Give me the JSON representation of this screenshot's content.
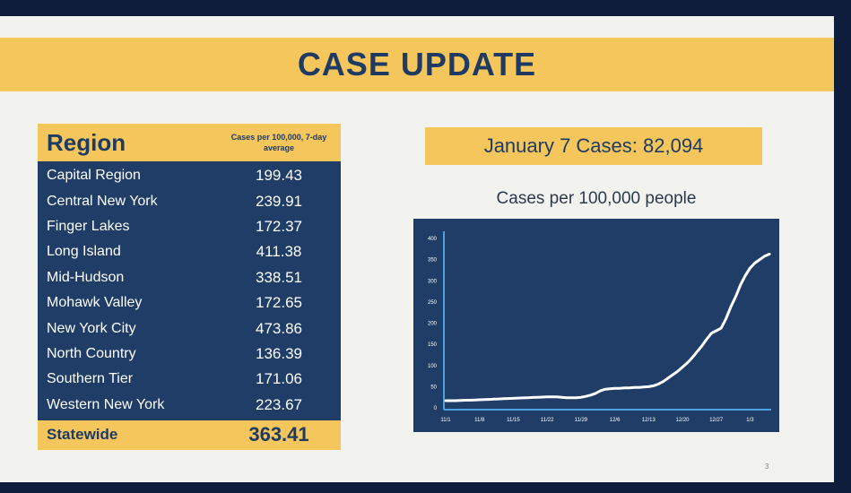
{
  "title": "CASE UPDATE",
  "table": {
    "header_region": "Region",
    "header_value": "Cases per 100,000, 7-day average",
    "rows": [
      {
        "region": "Capital Region",
        "value": "199.43"
      },
      {
        "region": "Central New York",
        "value": "239.91"
      },
      {
        "region": "Finger Lakes",
        "value": "172.37"
      },
      {
        "region": "Long Island",
        "value": "411.38"
      },
      {
        "region": "Mid-Hudson",
        "value": "338.51"
      },
      {
        "region": "Mohawk Valley",
        "value": "172.65"
      },
      {
        "region": "New York City",
        "value": "473.86"
      },
      {
        "region": "North Country",
        "value": "136.39"
      },
      {
        "region": "Southern Tier",
        "value": "171.06"
      },
      {
        "region": "Western New York",
        "value": "223.67"
      }
    ],
    "statewide_label": "Statewide",
    "statewide_value": "363.41"
  },
  "cases_label": "January 7 Cases: 82,094",
  "page_number": "3",
  "colors": {
    "accent": "#f5c65b",
    "navy": "#1f3d66",
    "line": "#ffffff",
    "axis": "#4aa3e0"
  },
  "chart_data": {
    "type": "line",
    "title": "Cases per 100,000 people",
    "xlabel": "",
    "ylabel": "",
    "x": [
      "11/1",
      "11/2",
      "11/3",
      "11/4",
      "11/5",
      "11/6",
      "11/7",
      "11/8",
      "11/9",
      "11/10",
      "11/11",
      "11/12",
      "11/13",
      "11/14",
      "11/15",
      "11/16",
      "11/17",
      "11/18",
      "11/19",
      "11/20",
      "11/21",
      "11/22",
      "11/23",
      "11/24",
      "11/25",
      "11/26",
      "11/27",
      "11/28",
      "11/29",
      "11/30",
      "12/1",
      "12/2",
      "12/3",
      "12/4",
      "12/5",
      "12/6",
      "12/7",
      "12/8",
      "12/9",
      "12/10",
      "12/11",
      "12/12",
      "12/13",
      "12/14",
      "12/15",
      "12/16",
      "12/17",
      "12/18",
      "12/19",
      "12/20",
      "12/21",
      "12/22",
      "12/23",
      "12/24",
      "12/25",
      "12/26",
      "12/27",
      "12/28",
      "12/29",
      "12/30",
      "12/31",
      "1/1",
      "1/2",
      "1/3",
      "1/4",
      "1/5",
      "1/6",
      "1/7"
    ],
    "series": [
      {
        "values": [
          17,
          17,
          17,
          17.5,
          18,
          18,
          18.5,
          19,
          19.5,
          20,
          20.5,
          21,
          21.5,
          22,
          22.5,
          23,
          23.5,
          24,
          24.5,
          25,
          25.5,
          26,
          26,
          26,
          25,
          24,
          24,
          24,
          25,
          27,
          30,
          34,
          40,
          44,
          45,
          46,
          46,
          47,
          47,
          48,
          48,
          49,
          50,
          52,
          56,
          62,
          70,
          78,
          86,
          96,
          106,
          118,
          132,
          146,
          162,
          176,
          182,
          188,
          210,
          238,
          262,
          290,
          312,
          330,
          342,
          350,
          358,
          363
        ]
      }
    ],
    "xticks": [
      "11/1",
      "11/8",
      "11/15",
      "11/22",
      "11/29",
      "12/6",
      "12/13",
      "12/20",
      "12/27",
      "1/3"
    ],
    "yticks": [
      0,
      50,
      100,
      150,
      200,
      250,
      300,
      350,
      400
    ],
    "ylim": [
      0,
      400
    ],
    "grid": false,
    "legend": "none"
  }
}
